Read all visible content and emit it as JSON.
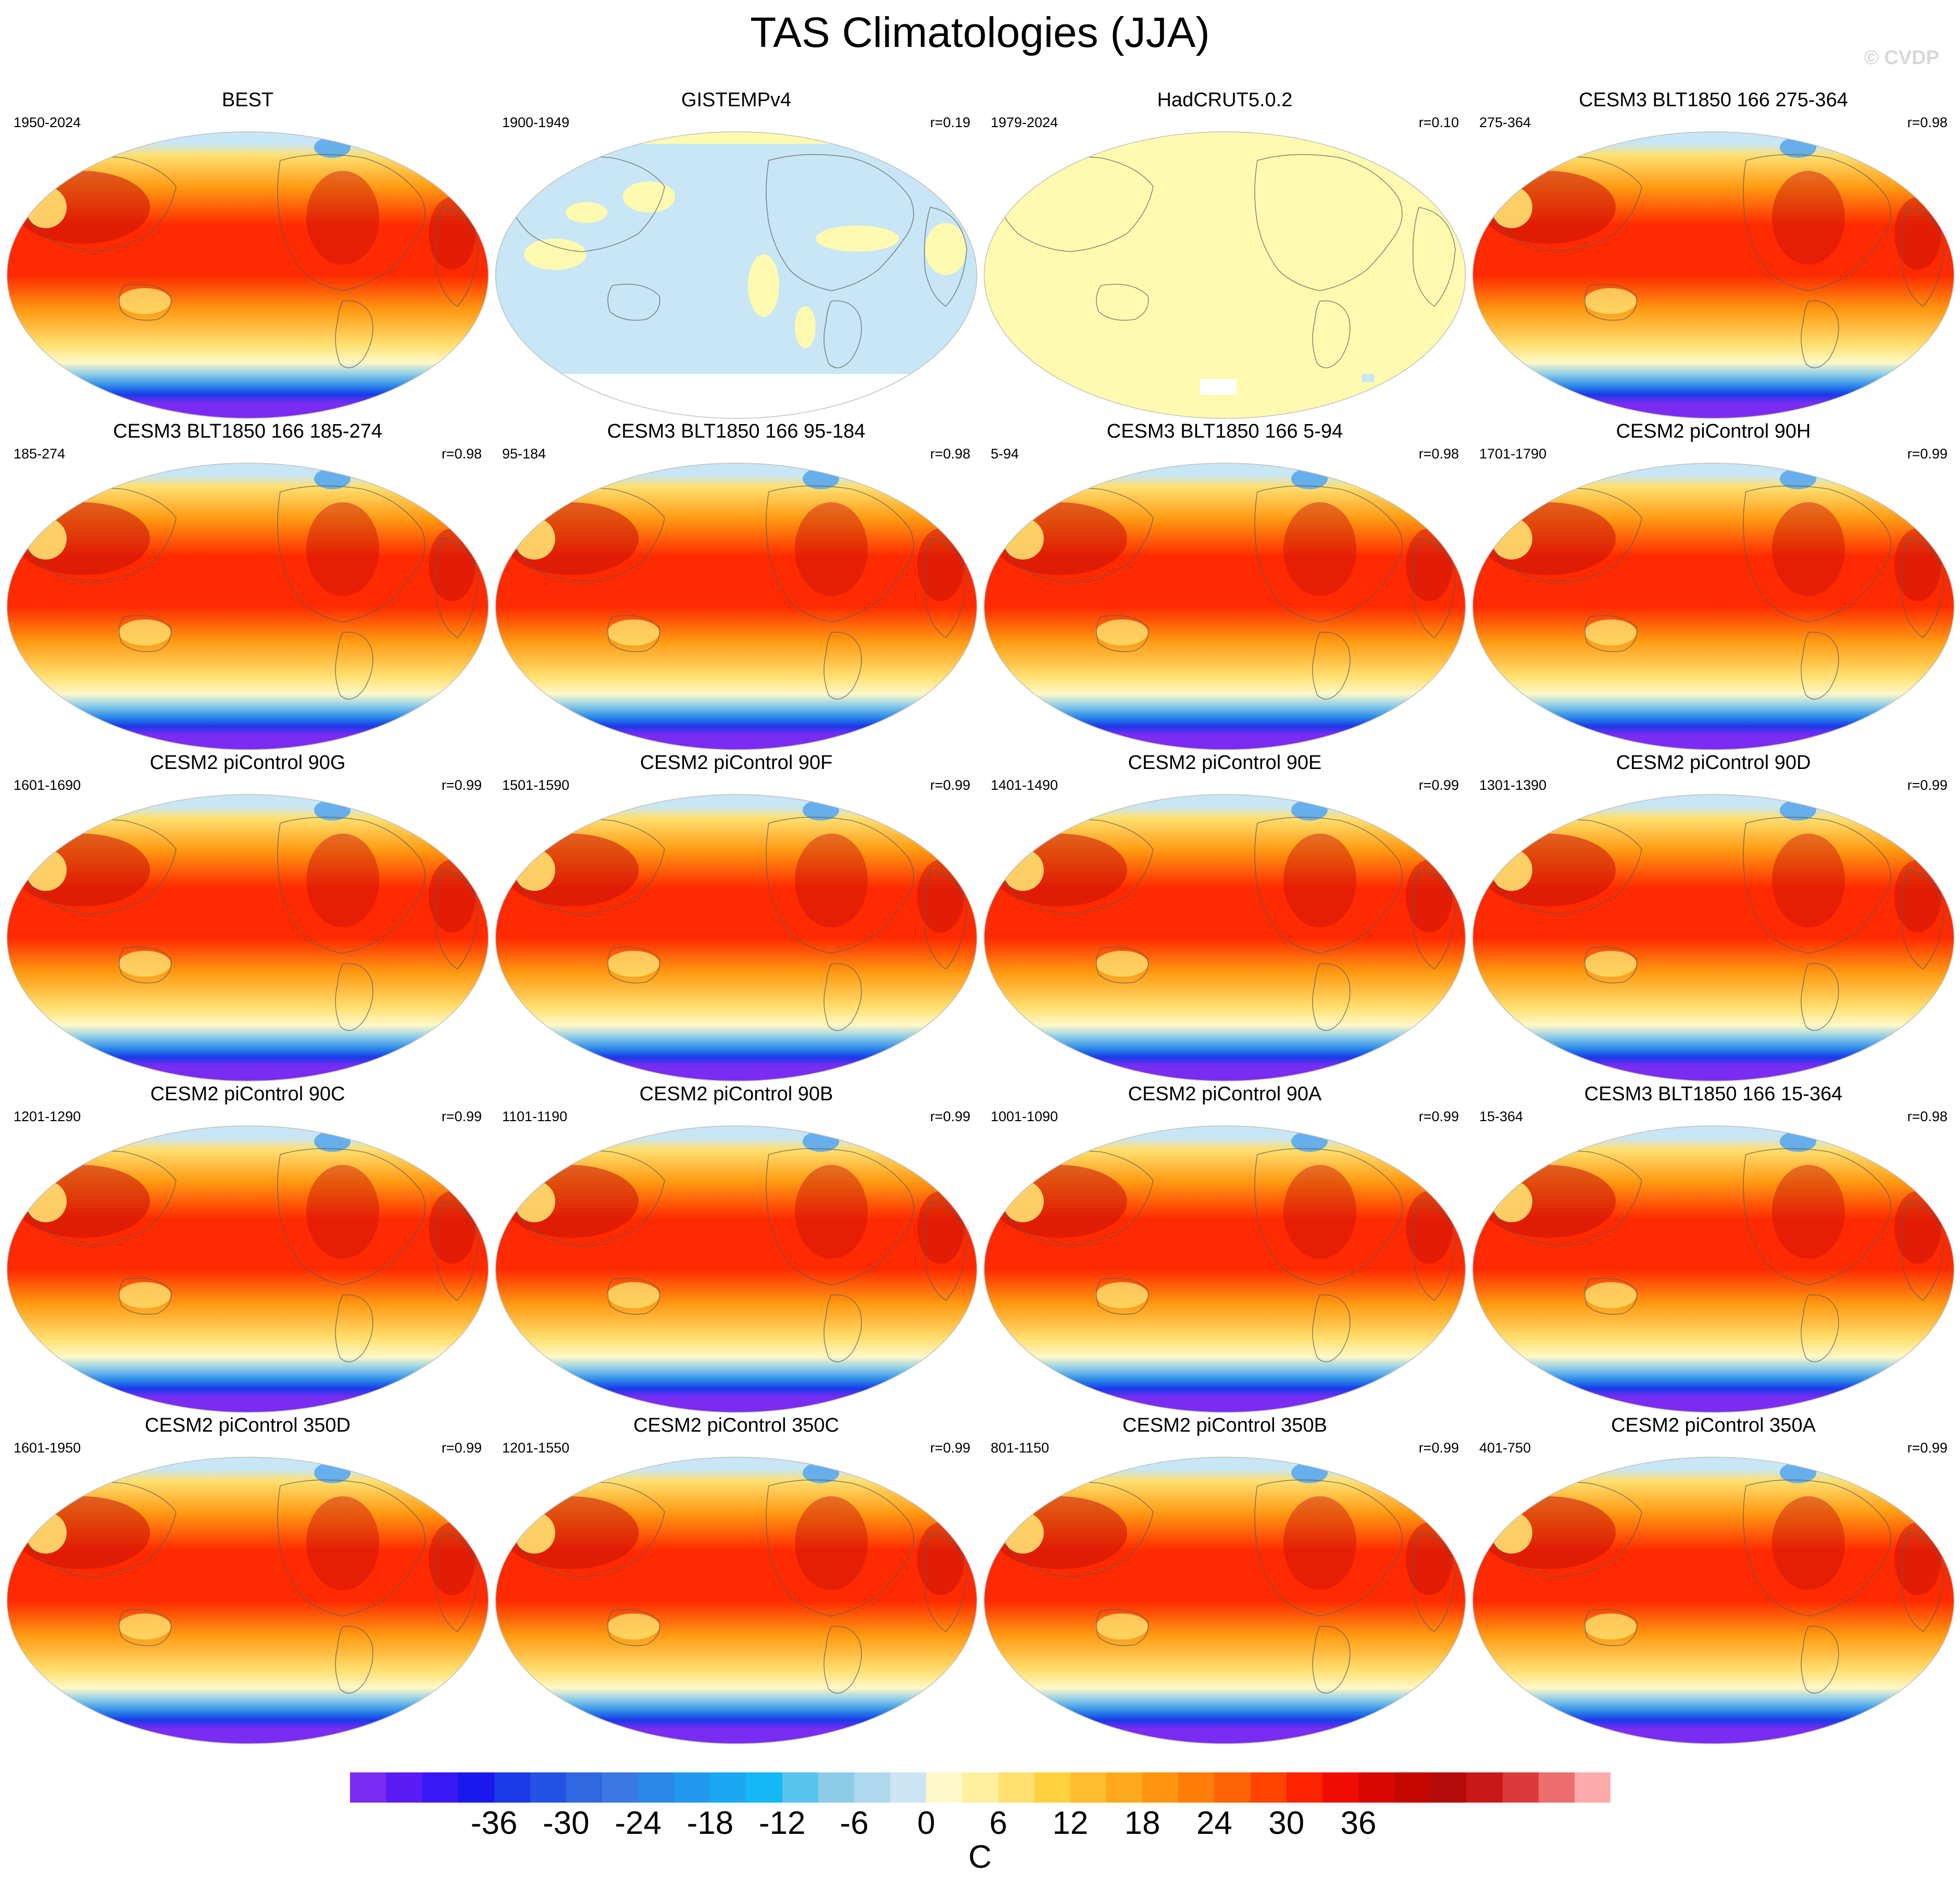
{
  "title": "TAS Climatologies (JJA)",
  "watermark": "© CVDP",
  "colorbar": {
    "unit": "C",
    "tick_labels": [
      "-36",
      "-30",
      "-24",
      "-18",
      "-12",
      "-6",
      "0",
      "6",
      "12",
      "18",
      "24",
      "30",
      "36"
    ],
    "colors": [
      "#7b2cf2",
      "#5a1cf4",
      "#3a18f6",
      "#1a18ee",
      "#1a3ae8",
      "#2452e4",
      "#3068e2",
      "#3a78e4",
      "#2a88e8",
      "#2298ee",
      "#1aa8f2",
      "#14b8f6",
      "#58c4f0",
      "#8ccce8",
      "#aed8ee",
      "#cce4f4",
      "#fff8c8",
      "#fff0a0",
      "#ffe070",
      "#ffd040",
      "#ffbc2c",
      "#ffa81c",
      "#ff9410",
      "#ff7c08",
      "#ff6404",
      "#ff4400",
      "#ff2400",
      "#f00c00",
      "#d80800",
      "#c40800",
      "#b40a0a",
      "#c81818",
      "#dc3a3a",
      "#ec6e6e",
      "#ffaaaa"
    ]
  },
  "palette": {
    "cold": "#7b2cf2",
    "pole_ice": "#c8e6f5",
    "cool": "#ffe070",
    "warm": "#ff9a12",
    "hot": "#ff2a00",
    "very_hot": "#c8100a",
    "gistemp_missing": "#c8e6f5",
    "gistemp_data": "#fffab0",
    "hadcrut_data": "#fffab0",
    "coast": "#5a5a5a"
  },
  "panels": [
    {
      "title": "BEST",
      "period": "1950-2024",
      "corr": "",
      "style": "model"
    },
    {
      "title": "GISTEMPv4",
      "period": "1900-1949",
      "corr": "r=0.19",
      "style": "gistemp"
    },
    {
      "title": "HadCRUT5.0.2",
      "period": "1979-2024",
      "corr": "r=0.10",
      "style": "hadcrut"
    },
    {
      "title": "CESM3 BLT1850 166 275-364",
      "period": "275-364",
      "corr": "r=0.98",
      "style": "model"
    },
    {
      "title": "CESM3 BLT1850 166 185-274",
      "period": "185-274",
      "corr": "r=0.98",
      "style": "model"
    },
    {
      "title": "CESM3 BLT1850 166 95-184",
      "period": "95-184",
      "corr": "r=0.98",
      "style": "model"
    },
    {
      "title": "CESM3 BLT1850 166 5-94",
      "period": "5-94",
      "corr": "r=0.98",
      "style": "model"
    },
    {
      "title": "CESM2 piControl 90H",
      "period": "1701-1790",
      "corr": "r=0.99",
      "style": "model"
    },
    {
      "title": "CESM2 piControl 90G",
      "period": "1601-1690",
      "corr": "r=0.99",
      "style": "model"
    },
    {
      "title": "CESM2 piControl 90F",
      "period": "1501-1590",
      "corr": "r=0.99",
      "style": "model"
    },
    {
      "title": "CESM2 piControl 90E",
      "period": "1401-1490",
      "corr": "r=0.99",
      "style": "model"
    },
    {
      "title": "CESM2 piControl 90D",
      "period": "1301-1390",
      "corr": "r=0.99",
      "style": "model"
    },
    {
      "title": "CESM2 piControl 90C",
      "period": "1201-1290",
      "corr": "r=0.99",
      "style": "model"
    },
    {
      "title": "CESM2 piControl 90B",
      "period": "1101-1190",
      "corr": "r=0.99",
      "style": "model"
    },
    {
      "title": "CESM2 piControl 90A",
      "period": "1001-1090",
      "corr": "r=0.99",
      "style": "model"
    },
    {
      "title": "CESM3 BLT1850 166 15-364",
      "period": "15-364",
      "corr": "r=0.98",
      "style": "model"
    },
    {
      "title": "CESM2 piControl 350D",
      "period": "1601-1950",
      "corr": "r=0.99",
      "style": "model"
    },
    {
      "title": "CESM2 piControl 350C",
      "period": "1201-1550",
      "corr": "r=0.99",
      "style": "model"
    },
    {
      "title": "CESM2 piControl 350B",
      "period": "801-1150",
      "corr": "r=0.99",
      "style": "model"
    },
    {
      "title": "CESM2 piControl 350A",
      "period": "401-750",
      "corr": "r=0.99",
      "style": "model"
    }
  ]
}
